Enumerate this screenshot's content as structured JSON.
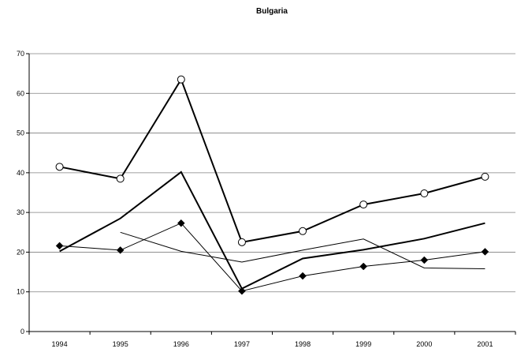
{
  "chart_data": {
    "type": "line",
    "title": "Bulgaria",
    "xlabel": "",
    "ylabel": "",
    "x": [
      "1994",
      "1995",
      "1996",
      "1997",
      "1998",
      "1999",
      "2000",
      "2001"
    ],
    "ylim": [
      0,
      70
    ],
    "yticks": [
      0,
      10,
      20,
      30,
      40,
      50,
      60,
      70
    ],
    "grid": true,
    "legend": "none",
    "series": [
      {
        "values": [
          41.5,
          38.5,
          63.5,
          22.5,
          25.3,
          32.0,
          34.8,
          39.0
        ],
        "marker": "open-circle",
        "line": "thick"
      },
      {
        "values": [
          20.2,
          28.5,
          40.2,
          10.8,
          18.4,
          20.6,
          23.4,
          27.3
        ],
        "marker": "none",
        "line": "thick"
      },
      {
        "values": [
          21.6,
          20.5,
          27.3,
          10.2,
          14.0,
          16.4,
          18.0,
          20.1
        ],
        "marker": "filled-diamond",
        "line": "thin"
      },
      {
        "values": [
          null,
          25.0,
          20.2,
          17.5,
          20.5,
          23.3,
          16.0,
          15.8
        ],
        "marker": "none",
        "line": "thin"
      }
    ]
  }
}
